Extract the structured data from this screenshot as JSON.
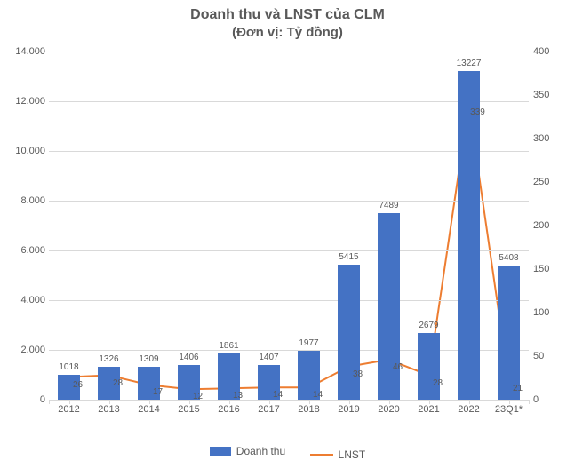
{
  "chart": {
    "type": "bar+line",
    "title": "Doanh thu và LNST của CLM",
    "subtitle": "(Đơn vị: Tỷ đồng)",
    "title_fontsize": 16,
    "subtitle_fontsize": 15,
    "title_color": "#595959",
    "background_color": "#ffffff",
    "grid_color": "#d9d9d9",
    "label_color": "#595959",
    "label_fontsize": 11,
    "data_label_fontsize": 10,
    "categories": [
      "2012",
      "2013",
      "2014",
      "2015",
      "2016",
      "2017",
      "2018",
      "2019",
      "2020",
      "2021",
      "2022",
      "23Q1*"
    ],
    "bars": {
      "name": "Doanh thu",
      "color": "#4472c4",
      "values": [
        1018,
        1326,
        1309,
        1406,
        1861,
        1407,
        1977,
        5415,
        7489,
        2679,
        13227,
        5408
      ],
      "bar_width_ratio": 0.55,
      "y_axis": "left"
    },
    "line": {
      "name": "LNST",
      "color": "#ed7d31",
      "width": 2,
      "values": [
        26,
        28,
        17,
        12,
        13,
        14,
        14,
        38,
        46,
        28,
        339,
        21
      ],
      "y_axis": "right"
    },
    "y_left": {
      "min": 0,
      "max": 14000,
      "step": 2000,
      "format_thousands_dot": true
    },
    "y_right": {
      "min": 0,
      "max": 400,
      "step": 50
    },
    "legend": {
      "items": [
        "Doanh thu",
        "LNST"
      ]
    }
  }
}
